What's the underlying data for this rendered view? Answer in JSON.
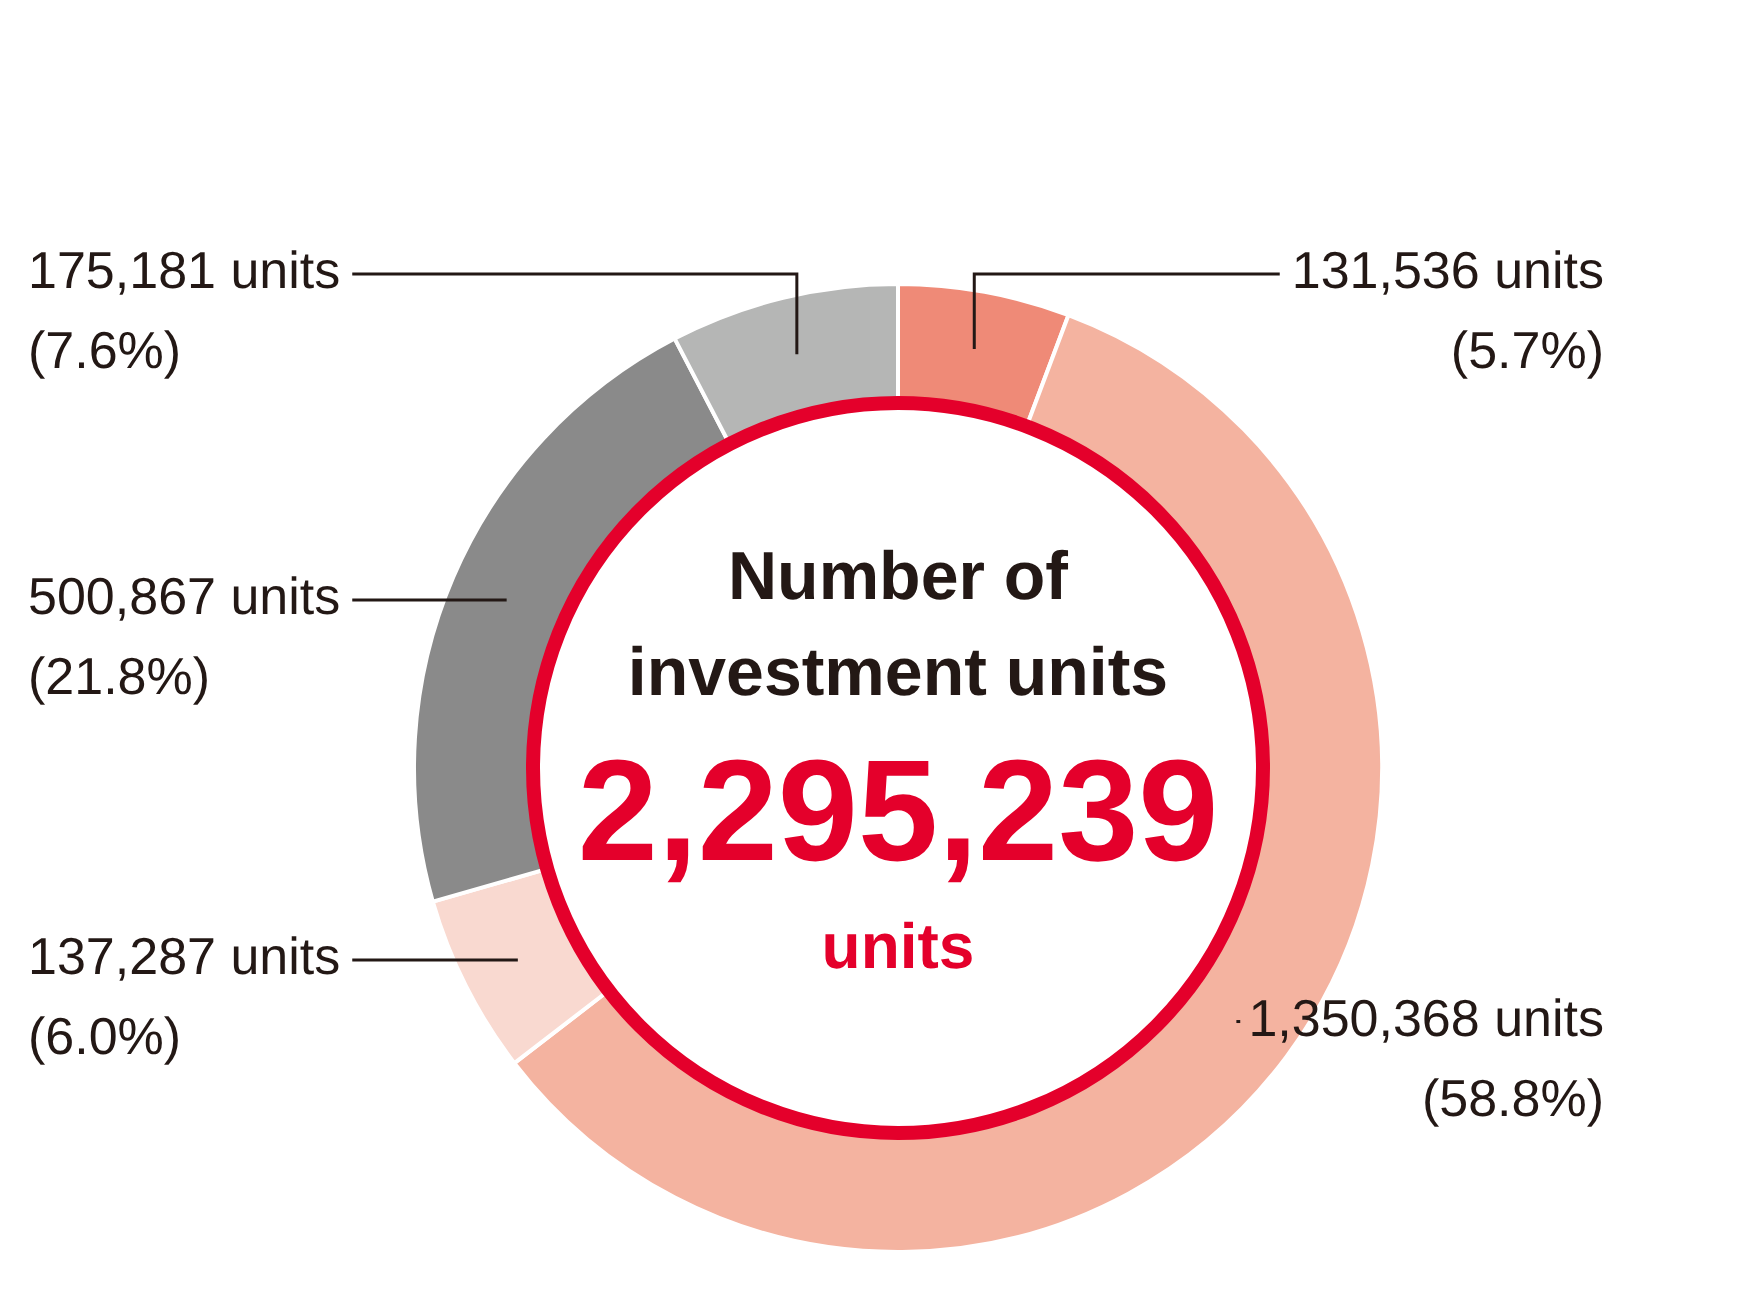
{
  "chart_data": {
    "type": "donut",
    "title": "Number of investment units",
    "categories": [
      null,
      null,
      null,
      null,
      null
    ],
    "values": [
      131536,
      1350368,
      137287,
      500867,
      175181
    ],
    "colors": [
      "#ef8a77",
      "#f4b3a0",
      "#f9d9d0",
      "#8a8a8a",
      "#b5b6b5"
    ],
    "value_labels": [
      "131,536 units\n(5.7%)",
      "1,350,368 units\n(58.8%)",
      "137,287 units\n(6.0%)",
      "500,867 units\n(21.8%)",
      "175,181 units\n(7.6%)"
    ],
    "annotations": [
      "2,295,239",
      "units"
    ]
  }
}
